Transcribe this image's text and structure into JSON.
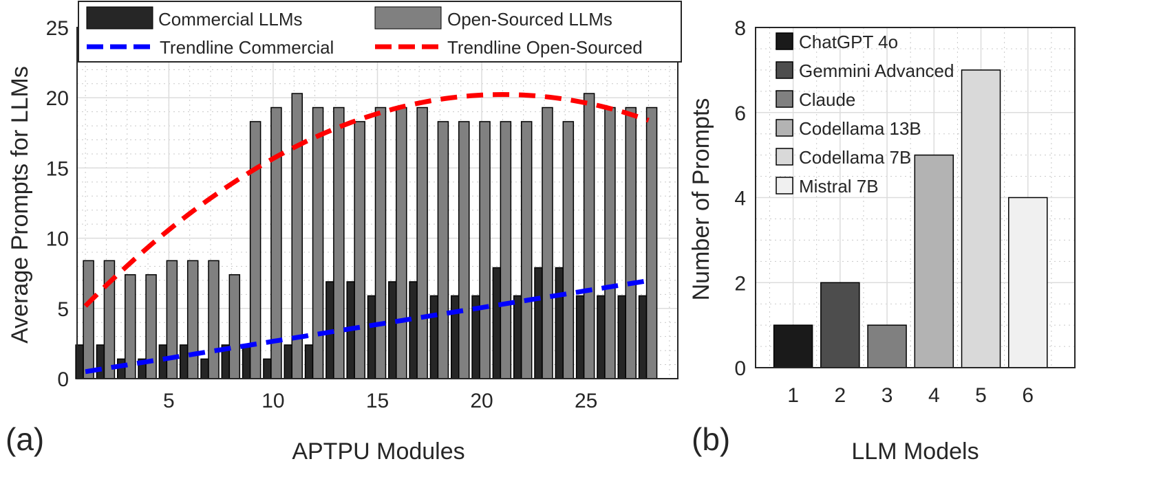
{
  "chart_data": [
    {
      "type": "bar",
      "panel_label": "(a)",
      "xlabel": "APTPU Modules",
      "ylabel": "Average Prompts for LLMs",
      "xlim": [
        0.6,
        29.4
      ],
      "ylim": [
        0,
        25
      ],
      "xticks": [
        5,
        10,
        15,
        20,
        25
      ],
      "yticks": [
        0,
        5,
        10,
        15,
        20,
        25
      ],
      "grid": true,
      "legend_position": "top",
      "categories": [
        1,
        2,
        3,
        4,
        5,
        6,
        7,
        8,
        9,
        10,
        11,
        12,
        13,
        14,
        15,
        16,
        17,
        18,
        19,
        20,
        21,
        22,
        23,
        24,
        25,
        26,
        27,
        28
      ],
      "series": [
        {
          "name": "Commercial LLMs",
          "color": "#262626",
          "values": [
            2.4,
            2.4,
            1.4,
            1.4,
            2.4,
            2.4,
            1.4,
            2.4,
            2.4,
            1.4,
            2.4,
            2.4,
            6.9,
            6.9,
            5.9,
            6.9,
            6.9,
            5.9,
            5.9,
            5.9,
            7.9,
            5.9,
            7.9,
            7.9,
            5.9,
            5.9,
            5.9,
            5.9
          ]
        },
        {
          "name": "Open-Sourced LLMs",
          "color": "#808080",
          "values": [
            8.4,
            8.4,
            7.4,
            7.4,
            8.4,
            8.4,
            8.4,
            7.4,
            18.3,
            19.3,
            20.3,
            19.3,
            19.3,
            18.3,
            19.3,
            19.3,
            19.3,
            18.3,
            18.3,
            18.3,
            18.3,
            18.3,
            19.3,
            18.3,
            20.3,
            19.3,
            19.3,
            19.3
          ]
        }
      ],
      "trendlines": [
        {
          "name": "Trendline Commercial",
          "color": "#0000ff",
          "x_start": 1,
          "x_end": 28,
          "coeffs_quadratic": [
            0.26,
            0.24,
            0.0
          ]
        },
        {
          "name": "Trendline Open-Sourced",
          "color": "#ff0000",
          "x_start": 1,
          "x_end": 28,
          "coeffs_quadratic": [
            3.63,
            1.58,
            -0.0376
          ]
        }
      ]
    },
    {
      "type": "bar",
      "panel_label": "(b)",
      "xlabel": "LLM Models",
      "ylabel": "Number of Prompts",
      "xlim": [
        0.2,
        7
      ],
      "ylim": [
        0,
        8
      ],
      "yticks": [
        0,
        2,
        4,
        6,
        8
      ],
      "grid": true,
      "legend_position": "top-left",
      "categories": [
        "1",
        "2",
        "3",
        "4",
        "5",
        "6"
      ],
      "values": [
        1,
        2,
        1,
        5,
        7,
        4
      ],
      "legend": [
        "ChatGPT 4o",
        "Gemmini Advanced",
        "Claude",
        "Codellama 13B",
        "Codellama 7B",
        "Mistral 7B"
      ],
      "colors": [
        "#1a1a1a",
        "#4d4d4d",
        "#808080",
        "#b3b3b3",
        "#d9d9d9",
        "#f0f0f0"
      ]
    }
  ]
}
